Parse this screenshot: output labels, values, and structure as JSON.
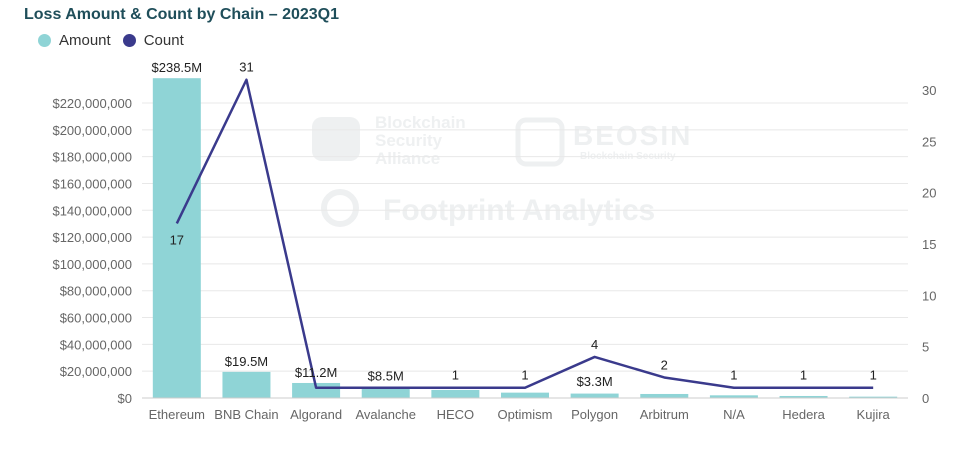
{
  "chart_data": {
    "type": "bar",
    "title": "Loss Amount & Count by Chain – 2023Q1",
    "categories": [
      "Ethereum",
      "BNB Chain",
      "Algorand",
      "Avalanche",
      "HECO",
      "Optimism",
      "Polygon",
      "Arbitrum",
      "N/A",
      "Hedera",
      "Kujira"
    ],
    "series": [
      {
        "name": "Amount",
        "chart": "bar",
        "axis": "left",
        "values": [
          238500000,
          19500000,
          11200000,
          8500000,
          6000000,
          4000000,
          3300000,
          3000000,
          2000000,
          1500000,
          1000000
        ],
        "labels": [
          "$238.5M",
          "$19.5M",
          "$11.2M",
          "$8.5M",
          "",
          "",
          "$3.3M",
          "",
          "",
          "",
          ""
        ]
      },
      {
        "name": "Count",
        "chart": "line",
        "axis": "right",
        "values": [
          17,
          31,
          1,
          1,
          1,
          1,
          4,
          2,
          1,
          1,
          1
        ],
        "labels": [
          "17",
          "31",
          "",
          "",
          "1",
          "1",
          "4",
          "2",
          "1",
          "1",
          "1"
        ]
      }
    ],
    "y_left": {
      "ylim": [
        0,
        240000000
      ],
      "ticks": [
        0,
        20000000,
        40000000,
        60000000,
        80000000,
        100000000,
        120000000,
        140000000,
        160000000,
        180000000,
        200000000,
        220000000
      ],
      "tick_labels": [
        "$0",
        "$20,000,000",
        "$40,000,000",
        "$60,000,000",
        "$80,000,000",
        "$100,000,000",
        "$120,000,000",
        "$140,000,000",
        "$160,000,000",
        "$180,000,000",
        "$200,000,000",
        "$220,000,000"
      ]
    },
    "y_right": {
      "ylim": [
        0,
        33
      ],
      "ticks": [
        0,
        5,
        10,
        15,
        20,
        25,
        30
      ],
      "tick_labels": [
        "0",
        "5",
        "10",
        "15",
        "20",
        "25",
        "30"
      ]
    },
    "grid": true,
    "legend_position": "top-left"
  },
  "colors": {
    "bar": "#8fd4d6",
    "line": "#3a3a8c",
    "grid": "#e8e8e8",
    "axis_text": "#666666",
    "label_text": "#222222",
    "title": "#1f4e5a"
  },
  "watermarks": [
    "Blockchain Security Alliance",
    "BEOSIN",
    "Blockchain Security",
    "Footprint Analytics"
  ]
}
